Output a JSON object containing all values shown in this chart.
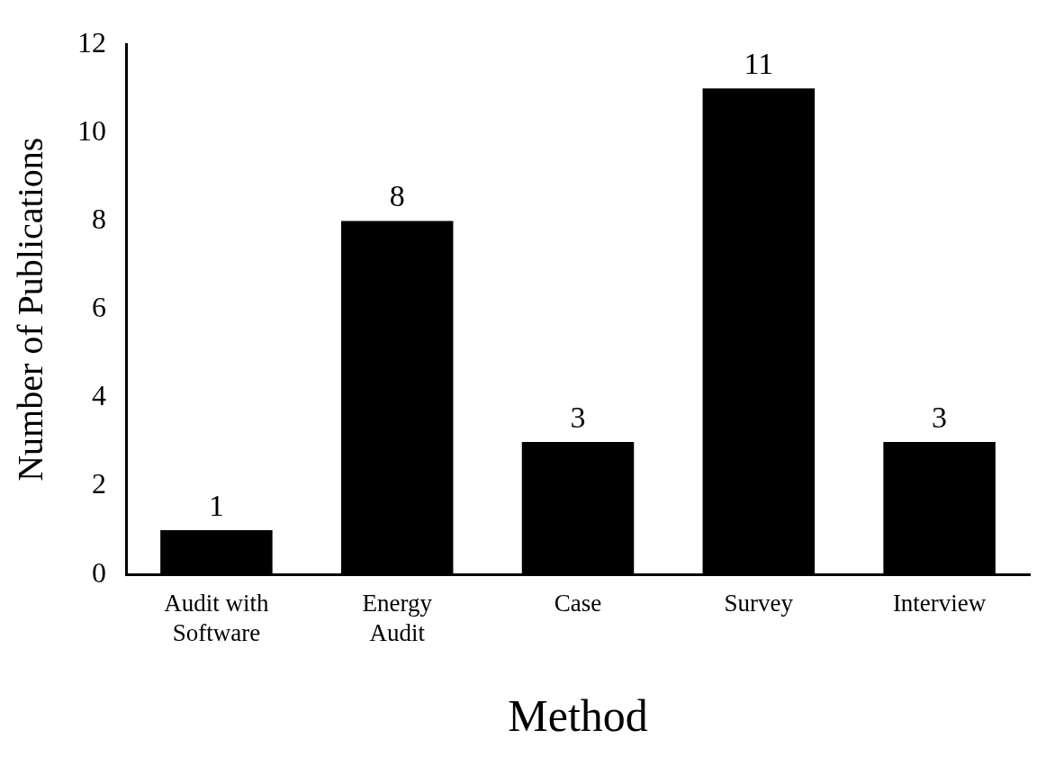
{
  "chart_data": {
    "type": "bar",
    "xlabel": "Method",
    "ylabel": "Number of Publications",
    "categories": [
      "Audit with Software",
      "Energy Audit",
      "Case",
      "Survey",
      "Interview"
    ],
    "values": [
      1,
      8,
      3,
      11,
      3
    ],
    "color": "#000000",
    "ylim": [
      0,
      12
    ],
    "yticks": [
      0,
      2,
      4,
      6,
      8,
      10,
      12
    ],
    "grid": false,
    "legend": false,
    "data_labels": true
  }
}
